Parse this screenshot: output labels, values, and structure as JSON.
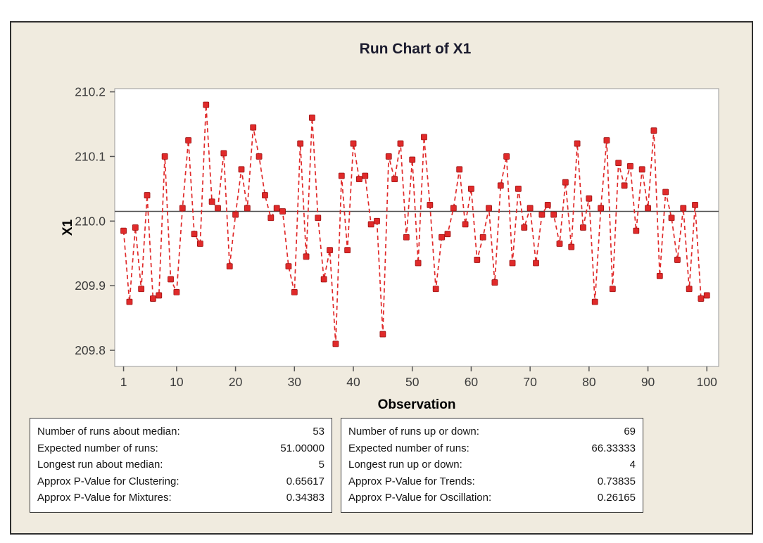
{
  "chart_data": {
    "type": "line",
    "title": "Run Chart of X1",
    "xlabel": "Observation",
    "ylabel": "X1",
    "x_ticks": [
      1,
      10,
      20,
      30,
      40,
      50,
      60,
      70,
      80,
      90,
      100
    ],
    "y_ticks": [
      209.8,
      209.9,
      210.0,
      210.1,
      210.2
    ],
    "xlim": [
      -0.5,
      102
    ],
    "ylim": [
      209.775,
      210.205
    ],
    "median": 210.015,
    "values": [
      209.985,
      209.875,
      209.99,
      209.895,
      210.04,
      209.88,
      209.885,
      210.1,
      209.91,
      209.89,
      210.02,
      210.125,
      209.98,
      209.965,
      210.18,
      210.03,
      210.02,
      210.105,
      209.93,
      210.01,
      210.08,
      210.02,
      210.145,
      210.1,
      210.04,
      210.005,
      210.02,
      210.015,
      209.93,
      209.89,
      210.12,
      209.945,
      210.16,
      210.005,
      209.91,
      209.955,
      209.81,
      210.07,
      209.955,
      210.12,
      210.065,
      210.07,
      209.995,
      210.0,
      209.825,
      210.1,
      210.065,
      210.12,
      209.975,
      210.095,
      209.935,
      210.13,
      210.025,
      209.895,
      209.975,
      209.98,
      210.02,
      210.08,
      209.995,
      210.05,
      209.94,
      209.975,
      210.02,
      209.905,
      210.055,
      210.1,
      209.935,
      210.05,
      209.99,
      210.02,
      209.935,
      210.01,
      210.025,
      210.01,
      209.965,
      210.06,
      209.96,
      210.12,
      209.99,
      210.035,
      209.875,
      210.02,
      210.125,
      209.895,
      210.09,
      210.055,
      210.085,
      209.985,
      210.08,
      210.02,
      210.14,
      209.915,
      210.045,
      210.005,
      209.94,
      210.02,
      209.895,
      210.025,
      209.88,
      209.885
    ],
    "marker_color": "#e02a2a",
    "marker_stroke": "#9c1212",
    "line_color": "#e02a2a",
    "line_style": "dashed",
    "median_line_color": "#4d4d4d",
    "grid": "off",
    "legend": "none"
  },
  "stats": {
    "left": {
      "rows": [
        {
          "label": "Number of runs about median:",
          "value": "53"
        },
        {
          "label": "Expected number of runs:",
          "value": "51.00000"
        },
        {
          "label": "Longest run about median:",
          "value": "5"
        },
        {
          "label": "Approx P-Value for Clustering:",
          "value": "0.65617"
        },
        {
          "label": "Approx P-Value for Mixtures:",
          "value": "0.34383"
        }
      ]
    },
    "right": {
      "rows": [
        {
          "label": "Number of runs up or down:",
          "value": "69"
        },
        {
          "label": "Expected number of runs:",
          "value": "66.33333"
        },
        {
          "label": "Longest run up or down:",
          "value": "4"
        },
        {
          "label": "Approx P-Value for Trends:",
          "value": "0.73835"
        },
        {
          "label": "Approx P-Value for Oscillation:",
          "value": "0.26165"
        }
      ]
    }
  },
  "colors": {
    "panel_bg": "#f0ebdf",
    "plot_bg": "#ffffff",
    "panel_border": "#2f2f2f",
    "marker_red": "#e02a2a"
  }
}
